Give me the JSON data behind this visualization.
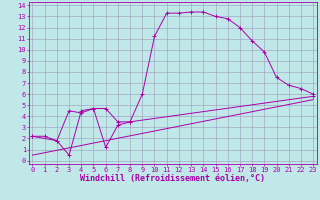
{
  "background_color": "#c0e8e8",
  "grid_color": "#9999bb",
  "line_color": "#aa00aa",
  "xlabel": "Windchill (Refroidissement éolien,°C)",
  "xlabel_fontsize": 6,
  "xticks": [
    0,
    1,
    2,
    3,
    4,
    5,
    6,
    7,
    8,
    9,
    10,
    11,
    12,
    13,
    14,
    15,
    16,
    17,
    18,
    19,
    20,
    21,
    22,
    23
  ],
  "yticks": [
    0,
    1,
    2,
    3,
    4,
    5,
    6,
    7,
    8,
    9,
    10,
    11,
    12,
    13,
    14
  ],
  "xlim": [
    -0.3,
    23.3
  ],
  "ylim": [
    -0.3,
    14.3
  ],
  "tick_fontsize": 5,
  "lines": [
    {
      "x": [
        0,
        1,
        2,
        3,
        4,
        5,
        6,
        7,
        8,
        9,
        10,
        11,
        12,
        13,
        14,
        15,
        16,
        17,
        18,
        19,
        20,
        21,
        22,
        23
      ],
      "y": [
        2.2,
        2.2,
        1.8,
        0.5,
        4.5,
        4.7,
        4.7,
        3.5,
        3.5,
        6.0,
        11.2,
        13.3,
        13.3,
        13.4,
        13.4,
        13.0,
        12.8,
        12.0,
        10.8,
        9.8,
        7.5,
        6.8,
        6.5,
        6.0
      ],
      "marker": "+"
    },
    {
      "x": [
        0,
        2,
        3,
        4,
        5,
        6,
        7,
        8,
        23
      ],
      "y": [
        2.2,
        1.8,
        4.5,
        4.3,
        4.7,
        1.2,
        3.2,
        3.5,
        5.8
      ],
      "marker": "+"
    },
    {
      "x": [
        0,
        23
      ],
      "y": [
        0.5,
        5.5
      ],
      "marker": null
    }
  ]
}
